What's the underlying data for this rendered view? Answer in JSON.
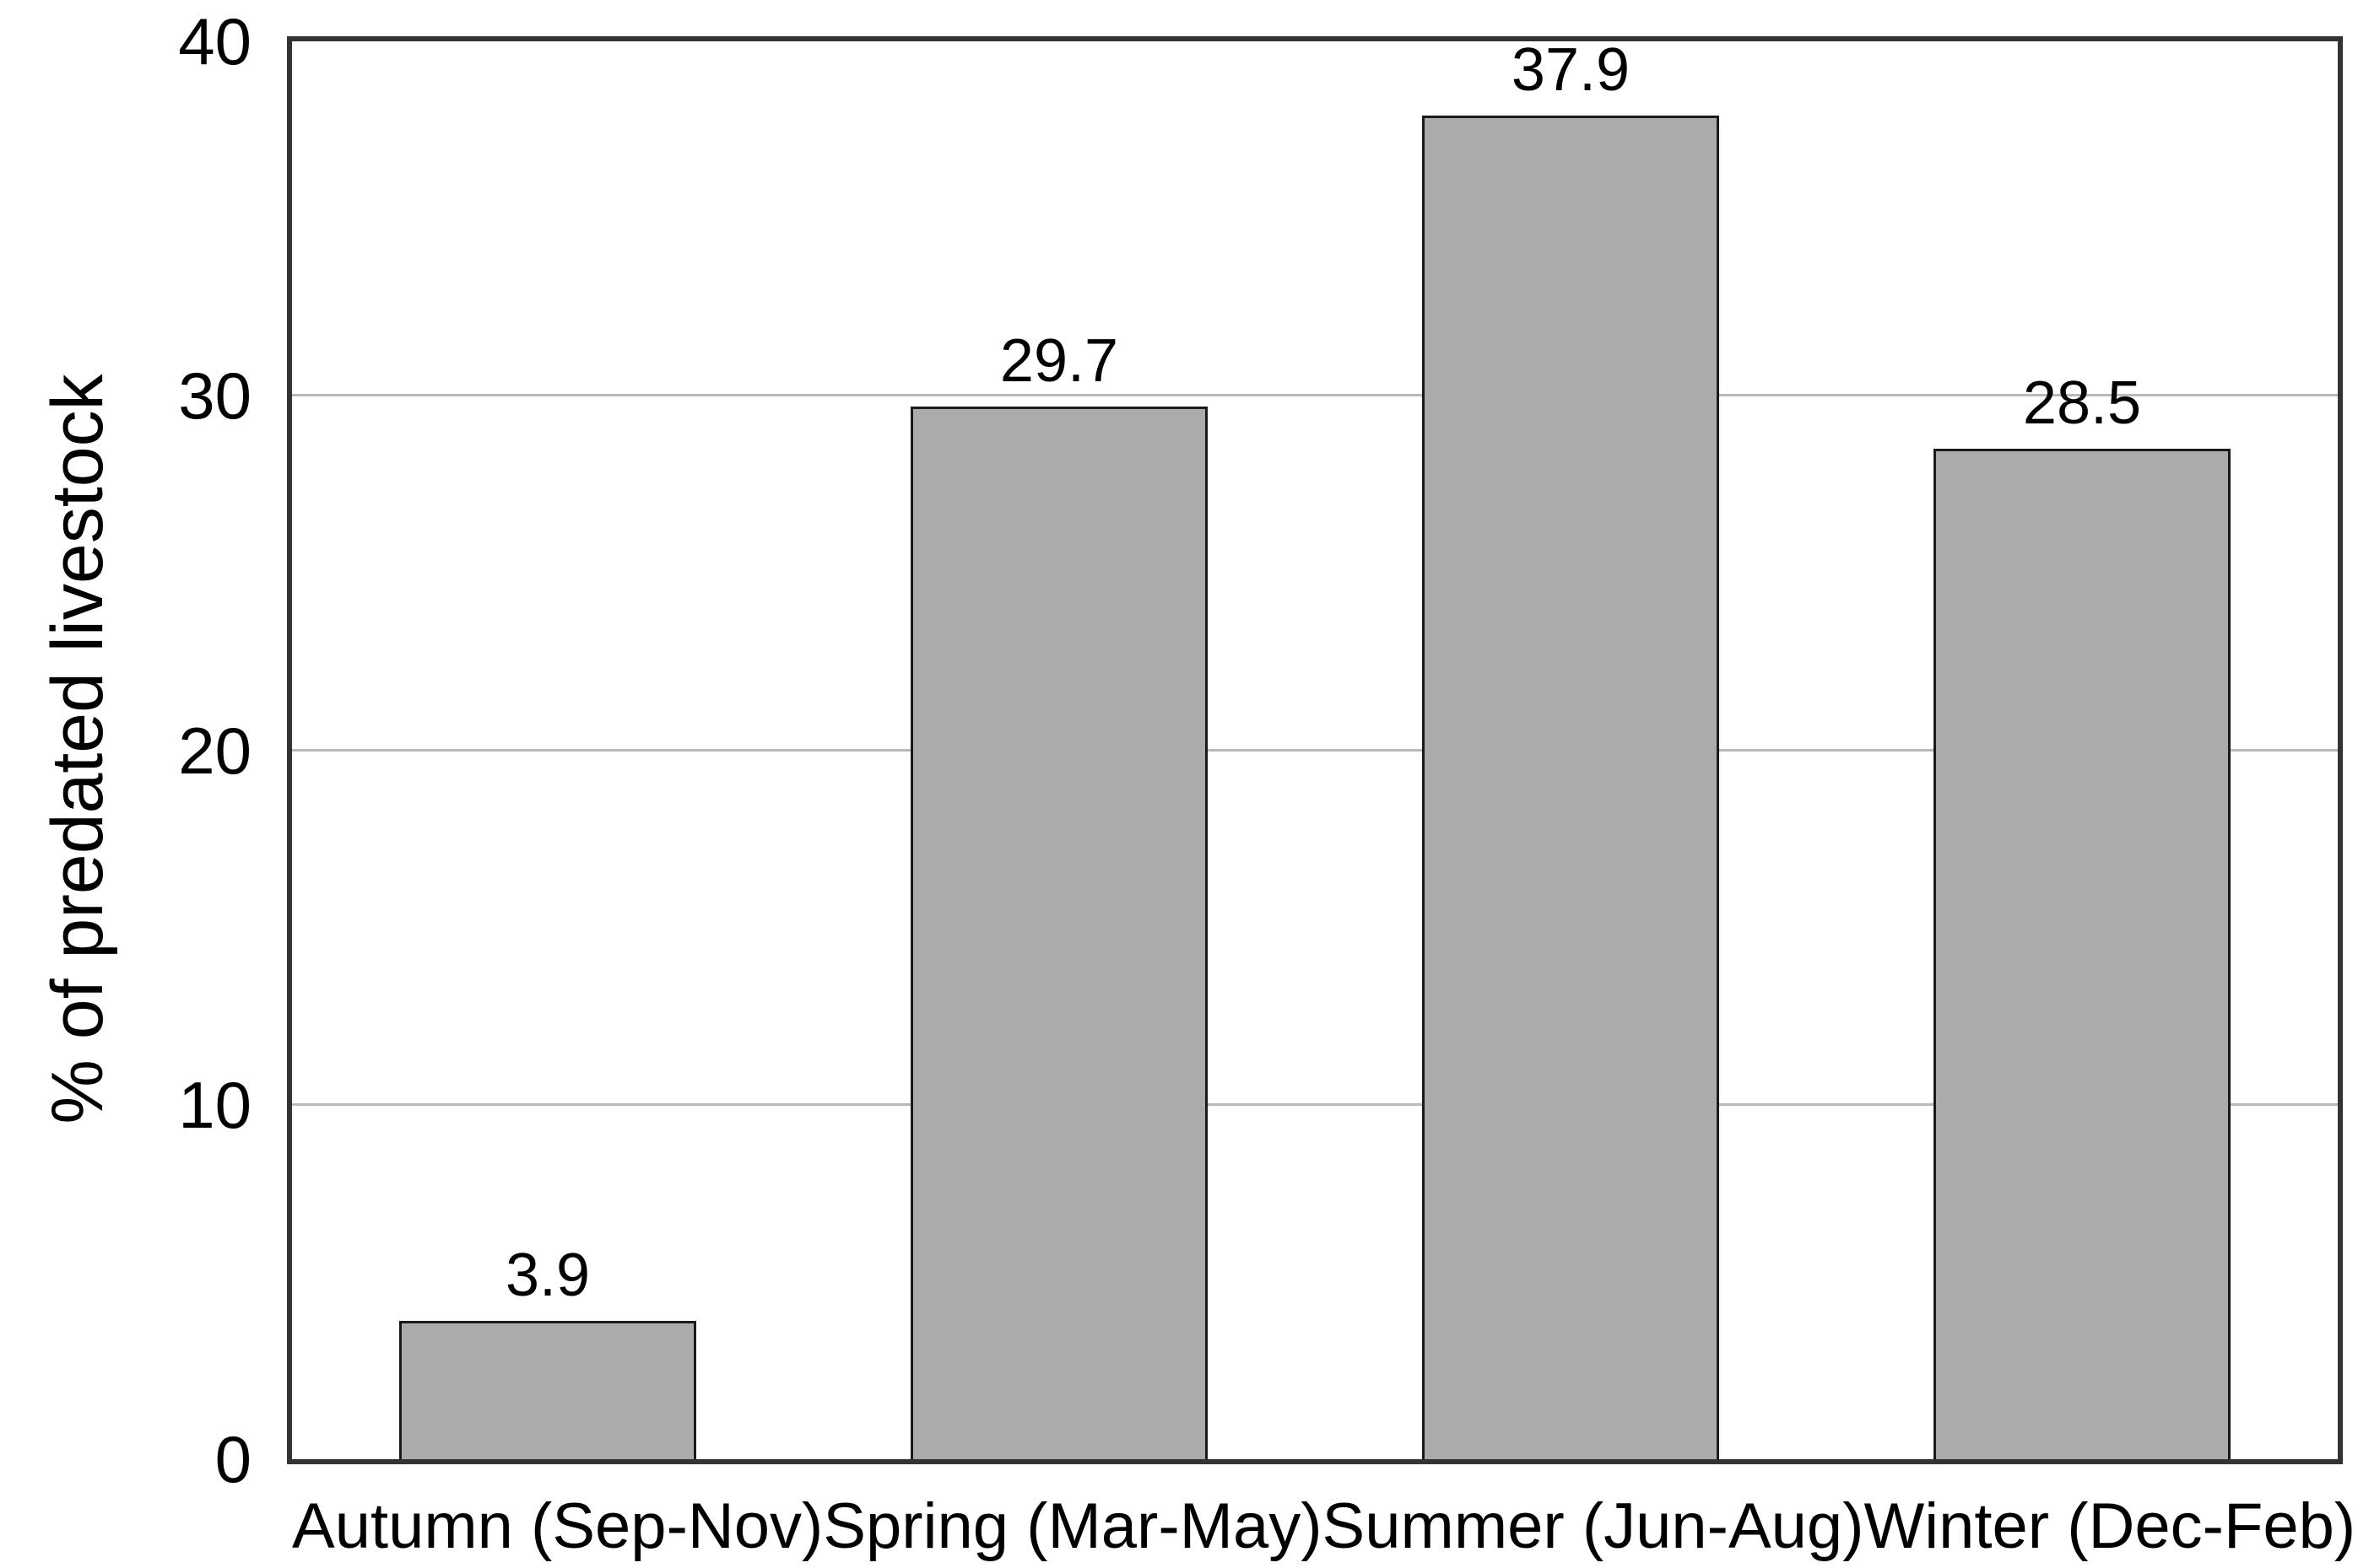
{
  "chart_data": {
    "type": "bar",
    "categories": [
      "Autumn (Sep-Nov)",
      "Spring (Mar-May)",
      "Summer (Jun-Aug)",
      "Winter (Dec-Feb)"
    ],
    "values": [
      3.9,
      29.7,
      37.9,
      28.5
    ],
    "value_labels": [
      "3.9",
      "29.7",
      "37.9",
      "28.5"
    ],
    "ylabel": "% of predated livestock",
    "ylim": [
      0,
      40
    ],
    "yticks": [
      0,
      10,
      20,
      30,
      40
    ],
    "gridlines": [
      10,
      20,
      30
    ],
    "grid": "horizontal",
    "legend_position": "none"
  },
  "colors": {
    "bar_fill": "#ababab",
    "bar_border": "#1a1a1a",
    "plot_border": "#333333",
    "gridline": "#b9b9b9",
    "text": "#000000",
    "background": "#ffffff"
  }
}
